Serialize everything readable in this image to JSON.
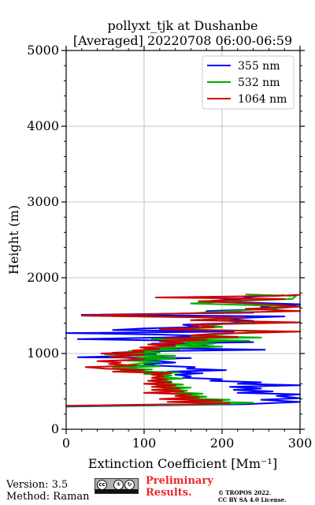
{
  "chart_data": {
    "type": "line",
    "title": "pollyxt_tjk at Dushanbe",
    "subtitle": "[Averaged] 20220708 06:00-06:59",
    "xlabel": "Extinction Coefficient [Mm⁻¹]",
    "ylabel": "Height (m)",
    "xlim": [
      0,
      300
    ],
    "ylim": [
      0,
      5000
    ],
    "x_ticks": [
      "0",
      "100",
      "200",
      "300"
    ],
    "y_ticks": [
      "0",
      "1000",
      "2000",
      "3000",
      "4000",
      "5000"
    ],
    "grid": true,
    "legend_position": "top-right",
    "series": [
      {
        "name": "355 nm",
        "color": "#0000ff",
        "points": [
          [
            0,
            300
          ],
          [
            230,
            330
          ],
          [
            300,
            360
          ],
          [
            250,
            390
          ],
          [
            300,
            410
          ],
          [
            270,
            440
          ],
          [
            300,
            460
          ],
          [
            220,
            480
          ],
          [
            265,
            500
          ],
          [
            215,
            520
          ],
          [
            250,
            540
          ],
          [
            210,
            560
          ],
          [
            300,
            580
          ],
          [
            220,
            600
          ],
          [
            250,
            620
          ],
          [
            185,
            640
          ],
          [
            200,
            660
          ],
          [
            150,
            680
          ],
          [
            160,
            700
          ],
          [
            140,
            720
          ],
          [
            175,
            740
          ],
          [
            130,
            760
          ],
          [
            205,
            780
          ],
          [
            155,
            800
          ],
          [
            165,
            820
          ],
          [
            115,
            840
          ],
          [
            100,
            860
          ],
          [
            140,
            880
          ],
          [
            120,
            900
          ],
          [
            95,
            920
          ],
          [
            160,
            940
          ],
          [
            15,
            950
          ],
          [
            80,
            970
          ],
          [
            115,
            990
          ],
          [
            60,
            1010
          ],
          [
            110,
            1030
          ],
          [
            255,
            1050
          ],
          [
            130,
            1070
          ],
          [
            195,
            1090
          ],
          [
            170,
            1110
          ],
          [
            110,
            1130
          ],
          [
            240,
            1150
          ],
          [
            140,
            1170
          ],
          [
            15,
            1190
          ],
          [
            125,
            1210
          ],
          [
            180,
            1230
          ],
          [
            120,
            1250
          ],
          [
            0,
            1270
          ],
          [
            215,
            1290
          ],
          [
            60,
            1310
          ],
          [
            100,
            1330
          ],
          [
            170,
            1350
          ],
          [
            150,
            1380
          ],
          [
            210,
            1400
          ],
          [
            240,
            1430
          ],
          [
            200,
            1460
          ],
          [
            280,
            1490
          ],
          [
            20,
            1510
          ],
          [
            240,
            1540
          ],
          [
            180,
            1560
          ],
          [
            270,
            1590
          ],
          [
            250,
            1620
          ],
          [
            300,
            1650
          ],
          [
            180,
            1690
          ],
          [
            220,
            1720
          ],
          [
            240,
            1750
          ],
          [
            280,
            1770
          ]
        ]
      },
      {
        "name": "532 nm",
        "color": "#00b000",
        "points": [
          [
            0,
            305
          ],
          [
            200,
            330
          ],
          [
            240,
            350
          ],
          [
            160,
            370
          ],
          [
            210,
            390
          ],
          [
            140,
            410
          ],
          [
            180,
            430
          ],
          [
            150,
            450
          ],
          [
            175,
            470
          ],
          [
            140,
            490
          ],
          [
            155,
            510
          ],
          [
            130,
            530
          ],
          [
            160,
            550
          ],
          [
            115,
            570
          ],
          [
            150,
            590
          ],
          [
            120,
            610
          ],
          [
            135,
            630
          ],
          [
            110,
            650
          ],
          [
            150,
            670
          ],
          [
            120,
            690
          ],
          [
            135,
            710
          ],
          [
            100,
            730
          ],
          [
            145,
            750
          ],
          [
            70,
            770
          ],
          [
            110,
            790
          ],
          [
            60,
            810
          ],
          [
            120,
            830
          ],
          [
            80,
            850
          ],
          [
            95,
            870
          ],
          [
            120,
            890
          ],
          [
            70,
            910
          ],
          [
            140,
            930
          ],
          [
            90,
            950
          ],
          [
            140,
            970
          ],
          [
            50,
            990
          ],
          [
            120,
            1010
          ],
          [
            80,
            1030
          ],
          [
            145,
            1050
          ],
          [
            100,
            1070
          ],
          [
            200,
            1090
          ],
          [
            140,
            1110
          ],
          [
            190,
            1130
          ],
          [
            140,
            1150
          ],
          [
            235,
            1170
          ],
          [
            110,
            1190
          ],
          [
            250,
            1210
          ],
          [
            160,
            1230
          ],
          [
            220,
            1270
          ],
          [
            270,
            1290
          ],
          [
            140,
            1320
          ],
          [
            200,
            1350
          ],
          [
            180,
            1380
          ],
          [
            245,
            1410
          ],
          [
            200,
            1440
          ],
          [
            215,
            1470
          ],
          [
            20,
            1500
          ],
          [
            160,
            1530
          ],
          [
            210,
            1560
          ],
          [
            260,
            1590
          ],
          [
            300,
            1620
          ],
          [
            160,
            1660
          ],
          [
            210,
            1690
          ],
          [
            290,
            1720
          ],
          [
            295,
            1760
          ],
          [
            230,
            1780
          ]
        ]
      },
      {
        "name": "1064 nm",
        "color": "#d00000",
        "points": [
          [
            0,
            310
          ],
          [
            210,
            340
          ],
          [
            130,
            360
          ],
          [
            200,
            380
          ],
          [
            120,
            400
          ],
          [
            170,
            420
          ],
          [
            140,
            440
          ],
          [
            160,
            460
          ],
          [
            100,
            480
          ],
          [
            150,
            500
          ],
          [
            110,
            520
          ],
          [
            145,
            540
          ],
          [
            110,
            560
          ],
          [
            140,
            580
          ],
          [
            100,
            600
          ],
          [
            135,
            620
          ],
          [
            105,
            640
          ],
          [
            130,
            660
          ],
          [
            110,
            680
          ],
          [
            125,
            700
          ],
          [
            110,
            720
          ],
          [
            135,
            740
          ],
          [
            60,
            760
          ],
          [
            100,
            780
          ],
          [
            50,
            800
          ],
          [
            25,
            820
          ],
          [
            90,
            840
          ],
          [
            55,
            860
          ],
          [
            70,
            880
          ],
          [
            40,
            900
          ],
          [
            100,
            920
          ],
          [
            80,
            940
          ],
          [
            55,
            960
          ],
          [
            100,
            980
          ],
          [
            45,
            1000
          ],
          [
            100,
            1020
          ],
          [
            85,
            1040
          ],
          [
            120,
            1060
          ],
          [
            95,
            1080
          ],
          [
            140,
            1100
          ],
          [
            105,
            1120
          ],
          [
            150,
            1140
          ],
          [
            120,
            1160
          ],
          [
            180,
            1180
          ],
          [
            125,
            1200
          ],
          [
            220,
            1220
          ],
          [
            160,
            1240
          ],
          [
            190,
            1260
          ],
          [
            300,
            1290
          ],
          [
            120,
            1320
          ],
          [
            190,
            1350
          ],
          [
            160,
            1380
          ],
          [
            300,
            1410
          ],
          [
            160,
            1440
          ],
          [
            230,
            1470
          ],
          [
            20,
            1500
          ],
          [
            300,
            1560
          ],
          [
            230,
            1590
          ],
          [
            300,
            1620
          ],
          [
            260,
            1650
          ],
          [
            170,
            1690
          ],
          [
            280,
            1720
          ],
          [
            115,
            1740
          ],
          [
            270,
            1760
          ],
          [
            300,
            1775
          ]
        ]
      }
    ]
  },
  "footer": {
    "version": "Version: 3.5",
    "method": "Method: Raman",
    "preliminary_line1": "Preliminary",
    "preliminary_line2": "Results.",
    "copyright_line1": "© TROPOS 2022.",
    "copyright_line2": "CC BY SA 4.0 License."
  },
  "license_badge": {
    "icon": "cc-by-sa-icon",
    "symbols": [
      "cc",
      "①",
      "↻"
    ],
    "text": [
      "BY",
      "SA"
    ]
  }
}
